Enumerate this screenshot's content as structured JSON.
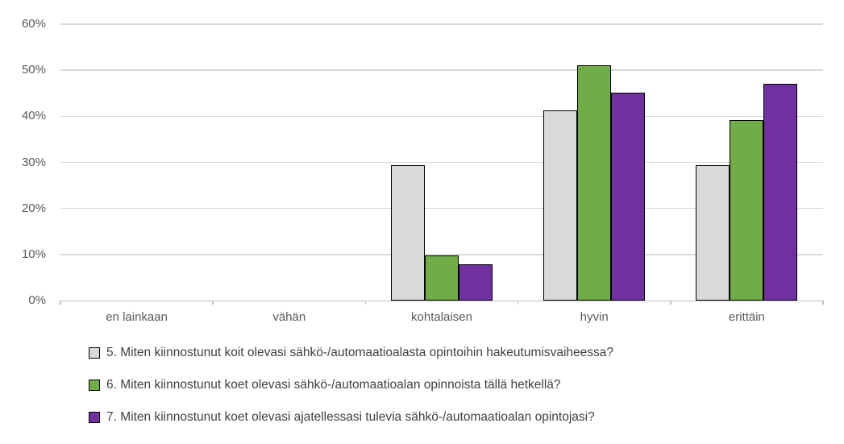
{
  "chart_data": {
    "type": "bar",
    "title": "",
    "xlabel": "",
    "ylabel": "",
    "categories": [
      "en lainkaan",
      "vähän",
      "kohtalaisen",
      "hyvin",
      "erittäin"
    ],
    "series": [
      {
        "name": "5. Miten kiinnostunut koit olevasi sähkö-/automaatioalasta opintoihin hakeutumisvaiheessa?",
        "color": "#d9d9d9",
        "values": [
          0,
          0,
          29.4,
          41.2,
          29.4
        ]
      },
      {
        "name": "6. Miten kiinnostunut koet olevasi sähkö-/automaatioalan opinnoista tällä hetkellä?",
        "color": "#70ad47",
        "values": [
          0,
          0,
          9.8,
          51.0,
          39.2
        ]
      },
      {
        "name": "7. Miten kiinnostunut koet olevasi ajatellessasi tulevia sähkö-/automaatioalan opintojasi?",
        "color": "#7030a0",
        "values": [
          0,
          0,
          7.8,
          45.1,
          47.1
        ]
      }
    ],
    "y_axis": {
      "min": 0,
      "max": 60,
      "step": 10,
      "tick_labels": [
        "0%",
        "10%",
        "20%",
        "30%",
        "40%",
        "50%",
        "60%"
      ]
    },
    "grid": true,
    "legend_position": "bottom",
    "bar_border_color": "#000000",
    "gridline_color": "#d9d9d9",
    "axis_line_color": "#bfbfbf",
    "axis_text_color": "#595959",
    "legend_text_color": "#404040"
  }
}
